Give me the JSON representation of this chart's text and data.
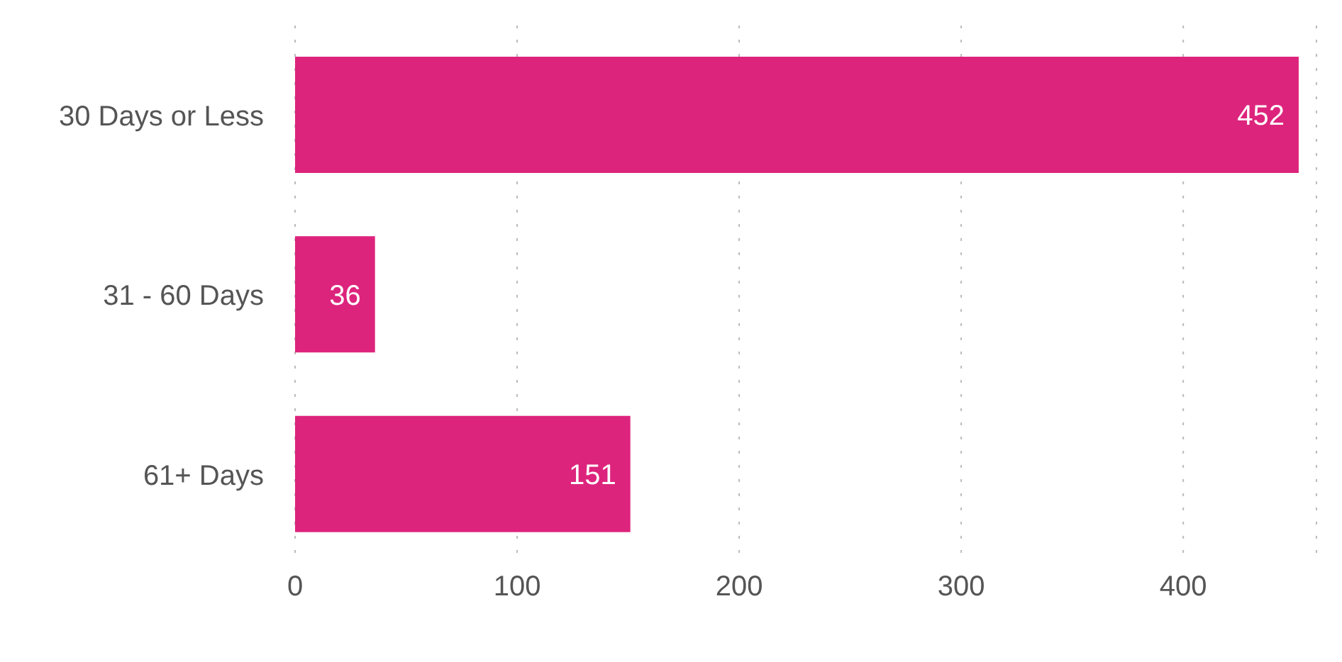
{
  "chart_data": {
    "type": "bar",
    "orientation": "horizontal",
    "categories": [
      "30 Days or Less",
      "31 - 60 Days",
      "61+ Days"
    ],
    "values": [
      452,
      36,
      151
    ],
    "color": "#dd247d",
    "xlim": [
      0,
      460
    ],
    "xticks": [
      0,
      100,
      200,
      300,
      400
    ],
    "grid": "x",
    "data_labels": true
  }
}
